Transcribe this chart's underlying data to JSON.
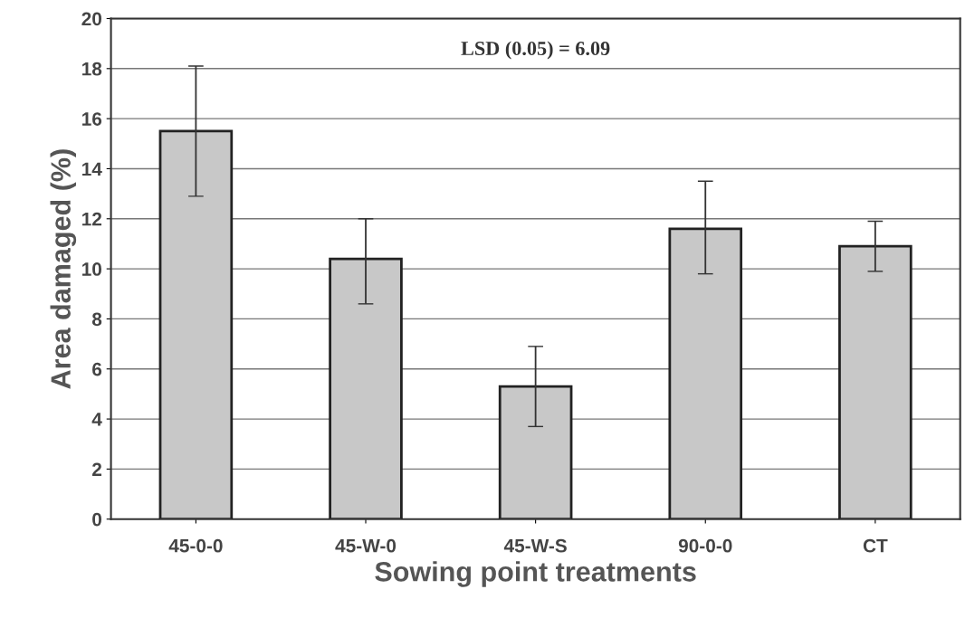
{
  "chart_data": {
    "type": "bar",
    "xlabel": "Sowing point treatments",
    "ylabel": "Area damaged (%)",
    "categories": [
      "45-0-0",
      "45-W-0",
      "45-W-S",
      "90-0-0",
      "CT"
    ],
    "values": [
      15.5,
      10.4,
      5.3,
      11.6,
      10.9
    ],
    "errors": [
      [
        12.9,
        18.1
      ],
      [
        8.6,
        12.0
      ],
      [
        3.7,
        6.9
      ],
      [
        9.8,
        13.5
      ],
      [
        9.9,
        11.9
      ]
    ],
    "color": "#c8c8c8",
    "ylim": [
      0,
      20
    ],
    "yticks": [
      0,
      2,
      4,
      6,
      8,
      10,
      12,
      14,
      16,
      18,
      20
    ],
    "grid": "y",
    "annotations": [
      "LSD (0.05) = 6.09"
    ]
  }
}
